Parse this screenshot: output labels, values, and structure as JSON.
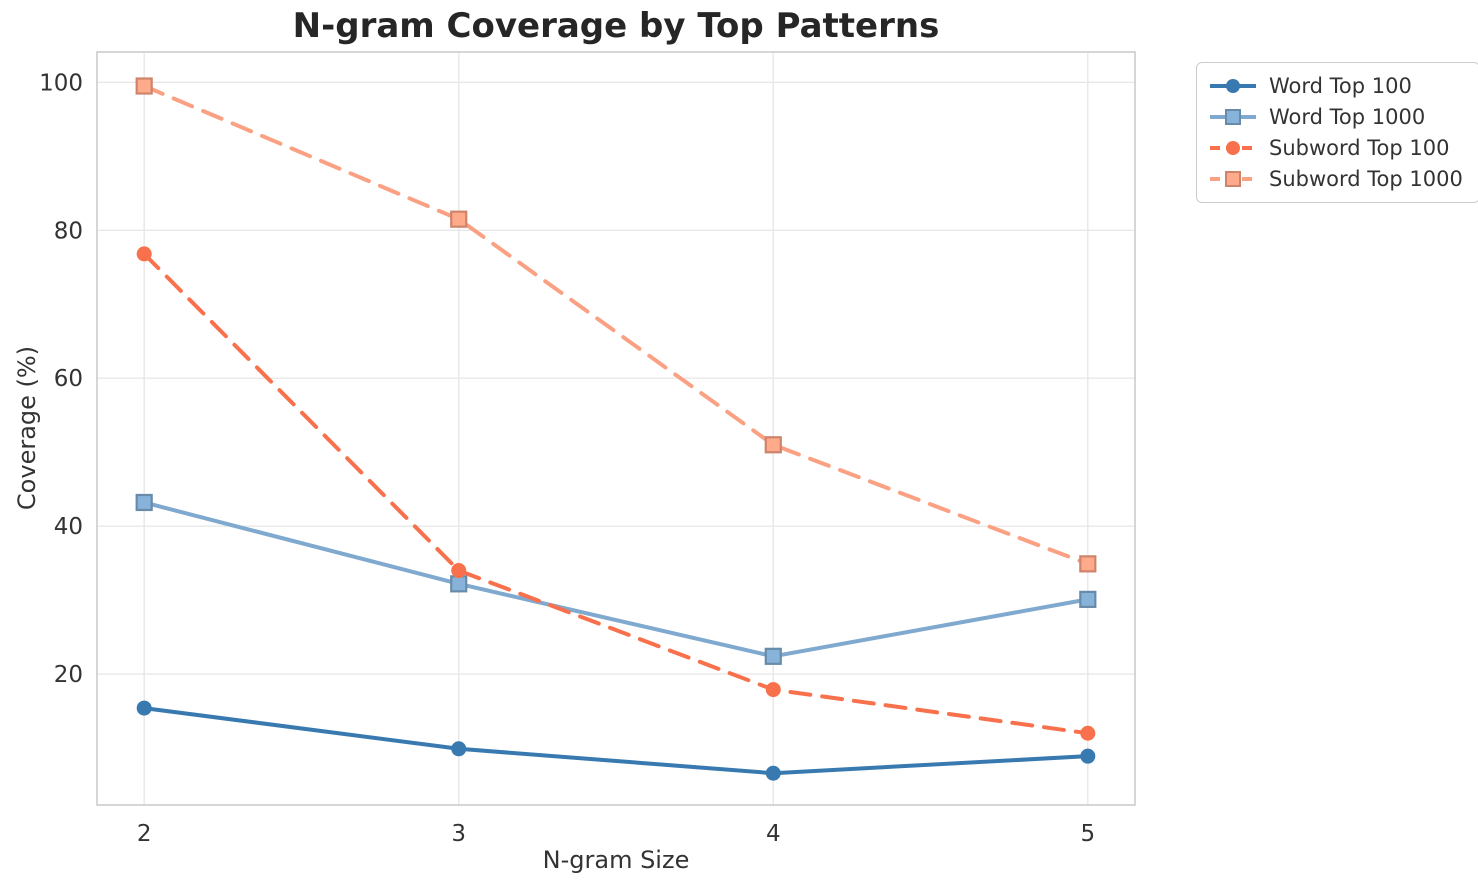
{
  "chart_data": {
    "type": "line",
    "title": "N-gram Coverage by Top Patterns",
    "xlabel": "N-gram Size",
    "ylabel": "Coverage (%)",
    "x": [
      2,
      3,
      4,
      5
    ],
    "xticks": [
      "2",
      "3",
      "4",
      "5"
    ],
    "yticks": [
      "20",
      "40",
      "60",
      "80",
      "100"
    ],
    "ytick_values": [
      20,
      40,
      60,
      80,
      100
    ],
    "xlim": [
      1.85,
      5.15
    ],
    "ylim": [
      2.3,
      104.1
    ],
    "grid": true,
    "legend_position": "outside-upper-right",
    "series": [
      {
        "name": "Word Top 100",
        "values": [
          15.4,
          9.9,
          6.6,
          8.9
        ],
        "color": "#3879b0",
        "line_style": "solid",
        "marker": "circle"
      },
      {
        "name": "Word Top 1000",
        "values": [
          43.2,
          32.2,
          22.4,
          30.1
        ],
        "color": "#7fa9cf",
        "line_style": "solid",
        "marker": "square"
      },
      {
        "name": "Subword Top 100",
        "values": [
          76.8,
          34.0,
          17.9,
          12.0
        ],
        "color": "#f8714c",
        "line_style": "dashed",
        "marker": "circle"
      },
      {
        "name": "Subword Top 1000",
        "values": [
          99.5,
          81.5,
          51.0,
          34.9
        ],
        "color": "#fba183",
        "line_style": "dashed",
        "marker": "square"
      }
    ],
    "style_colors": {
      "grid": "#e8e8e8",
      "spine": "#cccccc",
      "tick_text": "#333333",
      "title_text": "#262626"
    }
  }
}
